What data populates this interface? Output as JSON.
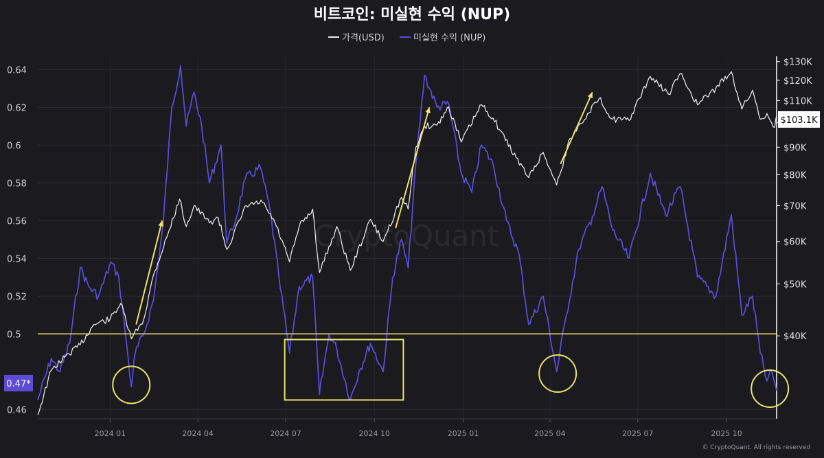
{
  "chart_data": {
    "type": "line",
    "title": "비트코인: 미실현 수익 (NUP)",
    "watermark": "CryptoQuant",
    "credit": "© CryptoQuant. All rights reserved",
    "colors": {
      "background": "#1a1a1f",
      "price": "#e8e8e8",
      "nup": "#5b4bd6",
      "highlight": "#e6e66a",
      "current_nup_badge": "#5b4bd6",
      "current_price_badge": "#ffffff"
    },
    "legend": {
      "placement": "top-center",
      "items": [
        {
          "label": "가격(USD)",
          "color": "#e8e8e8"
        },
        {
          "label": "미실현 수익 (NUP)",
          "color": "#5b4bd6"
        }
      ]
    },
    "x_axis": {
      "ticks": [
        "2024 01",
        "2024 04",
        "2024 07",
        "2024 10",
        "2025 01",
        "2025 04",
        "2025 07",
        "2025 10"
      ],
      "tick_dates": [
        "2024-01-01",
        "2024-04-01",
        "2024-07-01",
        "2024-10-01",
        "2025-01-01",
        "2025-04-01",
        "2025-07-01",
        "2025-10-01"
      ],
      "range": [
        "2023-10-18",
        "2025-11-22"
      ]
    },
    "y_left": {
      "label": "NUP",
      "ticks": [
        "0.64",
        "0.62",
        "0.6",
        "0.58",
        "0.56",
        "0.54",
        "0.52",
        "0.5",
        "0.46"
      ],
      "range": [
        0.455,
        0.647
      ]
    },
    "y_right": {
      "label": "Price (USD)",
      "scale": "log",
      "ticks": [
        "$130K",
        "$120K",
        "$110K",
        "$100K",
        "$90K",
        "$80K",
        "$70K",
        "$60K",
        "$50K",
        "$40K"
      ],
      "tick_values": [
        130000,
        120000,
        110000,
        100000,
        90000,
        80000,
        70000,
        60000,
        50000,
        40000
      ],
      "range": [
        28000,
        133000
      ]
    },
    "reference_line": {
      "value": 0.5,
      "axis": "left"
    },
    "current_values": {
      "nup": "0.47*",
      "price": "$103.1K"
    },
    "series": [
      {
        "name": "가격(USD)",
        "axis": "right",
        "points": [
          [
            "2023-10-18",
            28500
          ],
          [
            "2023-11-01",
            34500
          ],
          [
            "2023-11-15",
            36500
          ],
          [
            "2023-12-01",
            38500
          ],
          [
            "2023-12-15",
            42000
          ],
          [
            "2024-01-01",
            43000
          ],
          [
            "2024-01-12",
            46000
          ],
          [
            "2024-01-23",
            39500
          ],
          [
            "2024-02-05",
            43000
          ],
          [
            "2024-02-15",
            52000
          ],
          [
            "2024-03-01",
            62000
          ],
          [
            "2024-03-13",
            72000
          ],
          [
            "2024-03-20",
            64000
          ],
          [
            "2024-03-28",
            70000
          ],
          [
            "2024-04-13",
            65000
          ],
          [
            "2024-04-22",
            66500
          ],
          [
            "2024-05-01",
            58000
          ],
          [
            "2024-05-15",
            66000
          ],
          [
            "2024-05-21",
            70000
          ],
          [
            "2024-06-07",
            71000
          ],
          [
            "2024-06-20",
            65000
          ],
          [
            "2024-07-05",
            55000
          ],
          [
            "2024-07-15",
            64000
          ],
          [
            "2024-07-29",
            69000
          ],
          [
            "2024-08-05",
            52500
          ],
          [
            "2024-08-23",
            64000
          ],
          [
            "2024-09-06",
            53000
          ],
          [
            "2024-09-27",
            66000
          ],
          [
            "2024-10-10",
            60000
          ],
          [
            "2024-10-29",
            72500
          ],
          [
            "2024-11-05",
            69000
          ],
          [
            "2024-11-13",
            90000
          ],
          [
            "2024-11-22",
            98500
          ],
          [
            "2024-12-05",
            99000
          ],
          [
            "2024-12-17",
            107000
          ],
          [
            "2024-12-30",
            92000
          ],
          [
            "2025-01-20",
            108000
          ],
          [
            "2025-02-01",
            102000
          ],
          [
            "2025-02-25",
            86000
          ],
          [
            "2025-03-10",
            79000
          ],
          [
            "2025-03-25",
            88000
          ],
          [
            "2025-04-08",
            76500
          ],
          [
            "2025-04-22",
            93500
          ],
          [
            "2025-05-10",
            104000
          ],
          [
            "2025-05-22",
            111000
          ],
          [
            "2025-06-05",
            101500
          ],
          [
            "2025-06-22",
            101000
          ],
          [
            "2025-07-14",
            122000
          ],
          [
            "2025-08-02",
            113000
          ],
          [
            "2025-08-14",
            123500
          ],
          [
            "2025-09-01",
            108000
          ],
          [
            "2025-09-20",
            116000
          ],
          [
            "2025-10-06",
            124500
          ],
          [
            "2025-10-17",
            106000
          ],
          [
            "2025-10-28",
            115000
          ],
          [
            "2025-11-05",
            101500
          ],
          [
            "2025-11-12",
            104000
          ],
          [
            "2025-11-20",
            98000
          ],
          [
            "2025-11-22",
            103100
          ]
        ]
      },
      {
        "name": "미실현 수익 (NUP)",
        "axis": "left",
        "points": [
          [
            "2023-10-18",
            0.465
          ],
          [
            "2023-11-01",
            0.487
          ],
          [
            "2023-11-10",
            0.48
          ],
          [
            "2023-11-20",
            0.495
          ],
          [
            "2023-12-01",
            0.535
          ],
          [
            "2023-12-10",
            0.525
          ],
          [
            "2023-12-20",
            0.52
          ],
          [
            "2024-01-02",
            0.538
          ],
          [
            "2024-01-10",
            0.53
          ],
          [
            "2024-01-20",
            0.486
          ],
          [
            "2024-01-23",
            0.472
          ],
          [
            "2024-01-27",
            0.49
          ],
          [
            "2024-02-05",
            0.5
          ],
          [
            "2024-02-15",
            0.518
          ],
          [
            "2024-02-25",
            0.558
          ],
          [
            "2024-03-05",
            0.62
          ],
          [
            "2024-03-14",
            0.642
          ],
          [
            "2024-03-20",
            0.61
          ],
          [
            "2024-03-28",
            0.628
          ],
          [
            "2024-04-05",
            0.61
          ],
          [
            "2024-04-13",
            0.58
          ],
          [
            "2024-04-25",
            0.6
          ],
          [
            "2024-05-01",
            0.548
          ],
          [
            "2024-05-10",
            0.56
          ],
          [
            "2024-05-20",
            0.582
          ],
          [
            "2024-06-05",
            0.588
          ],
          [
            "2024-06-15",
            0.565
          ],
          [
            "2024-06-24",
            0.53
          ],
          [
            "2024-07-05",
            0.49
          ],
          [
            "2024-07-15",
            0.525
          ],
          [
            "2024-07-29",
            0.53
          ],
          [
            "2024-08-05",
            0.468
          ],
          [
            "2024-08-15",
            0.5
          ],
          [
            "2024-08-23",
            0.492
          ],
          [
            "2024-09-06",
            0.465
          ],
          [
            "2024-09-15",
            0.48
          ],
          [
            "2024-09-27",
            0.495
          ],
          [
            "2024-10-10",
            0.48
          ],
          [
            "2024-10-20",
            0.53
          ],
          [
            "2024-10-29",
            0.55
          ],
          [
            "2024-11-05",
            0.535
          ],
          [
            "2024-11-13",
            0.59
          ],
          [
            "2024-11-22",
            0.637
          ],
          [
            "2024-12-05",
            0.62
          ],
          [
            "2024-12-17",
            0.622
          ],
          [
            "2024-12-30",
            0.585
          ],
          [
            "2025-01-10",
            0.575
          ],
          [
            "2025-01-20",
            0.6
          ],
          [
            "2025-02-01",
            0.59
          ],
          [
            "2025-02-15",
            0.56
          ],
          [
            "2025-02-28",
            0.542
          ],
          [
            "2025-03-10",
            0.505
          ],
          [
            "2025-03-25",
            0.52
          ],
          [
            "2025-04-08",
            0.48
          ],
          [
            "2025-04-18",
            0.51
          ],
          [
            "2025-05-01",
            0.545
          ],
          [
            "2025-05-15",
            0.562
          ],
          [
            "2025-05-25",
            0.578
          ],
          [
            "2025-06-05",
            0.555
          ],
          [
            "2025-06-22",
            0.54
          ],
          [
            "2025-07-14",
            0.585
          ],
          [
            "2025-07-30",
            0.563
          ],
          [
            "2025-08-14",
            0.578
          ],
          [
            "2025-09-01",
            0.53
          ],
          [
            "2025-09-20",
            0.52
          ],
          [
            "2025-10-06",
            0.563
          ],
          [
            "2025-10-17",
            0.51
          ],
          [
            "2025-10-28",
            0.52
          ],
          [
            "2025-11-05",
            0.49
          ],
          [
            "2025-11-12",
            0.475
          ],
          [
            "2025-11-17",
            0.48
          ],
          [
            "2025-11-22",
            0.47
          ]
        ]
      }
    ],
    "annotations": [
      {
        "type": "circle",
        "x": "2024-01-23",
        "y": 0.473,
        "color": "#e6e66a"
      },
      {
        "type": "rectangle",
        "x0": "2024-06-30",
        "x1": "2024-10-31",
        "y0": 0.465,
        "y1": 0.497,
        "color": "#e6e66a"
      },
      {
        "type": "circle",
        "x": "2025-04-09",
        "y": 0.479,
        "color": "#e6e66a"
      },
      {
        "type": "circle",
        "x": "2025-11-15",
        "y": 0.471,
        "color": "#e6e66a"
      },
      {
        "type": "arrow",
        "x0": "2024-01-28",
        "y0": 0.505,
        "x1": "2024-02-24",
        "y1": 0.56,
        "color": "#e6e66a"
      },
      {
        "type": "arrow",
        "x0": "2024-10-23",
        "y0": 0.556,
        "x1": "2024-11-27",
        "y1": 0.62,
        "color": "#e6e66a"
      },
      {
        "type": "arrow",
        "x0": "2025-04-12",
        "y0": 0.59,
        "x1": "2025-05-15",
        "y1": 0.628,
        "color": "#e6e66a"
      }
    ]
  }
}
